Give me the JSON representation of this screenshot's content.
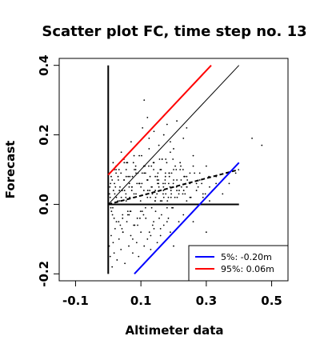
{
  "chart_data": {
    "type": "scatter",
    "title": "Scatter plot FC, time step no. 13",
    "xlabel": "Altimeter data",
    "ylabel": "Forecast",
    "xlim": [
      -0.15,
      0.55
    ],
    "ylim": [
      -0.22,
      0.42
    ],
    "x_ticks": [
      -0.1,
      0.1,
      0.3,
      0.5
    ],
    "x_tick_labels": [
      "-0.1",
      "0.1",
      "0.3",
      "0.5"
    ],
    "y_ticks": [
      -0.2,
      0.0,
      0.2,
      0.4
    ],
    "y_tick_labels": [
      "-0.2",
      "0.0",
      "0.2",
      "0.4"
    ],
    "grid": false,
    "legend_position": "bottom-right",
    "legend": [
      {
        "label": "5%: -0.20m",
        "color": "#0000ff"
      },
      {
        "label": "95%:  0.06m",
        "color": "#ff0000"
      }
    ],
    "reference_lines": [
      {
        "name": "horizontal-axis-line",
        "x": [
          0.0,
          0.4
        ],
        "y": [
          0.0,
          0.0
        ],
        "color": "#000000",
        "style": "solid",
        "width": 2
      },
      {
        "name": "vertical-axis-line",
        "x": [
          0.0,
          0.0
        ],
        "y": [
          -0.2,
          0.4
        ],
        "color": "#000000",
        "style": "solid",
        "width": 2
      },
      {
        "name": "identity-line",
        "x": [
          0.0,
          0.4
        ],
        "y": [
          0.0,
          0.4
        ],
        "color": "#000000",
        "style": "solid",
        "width": 1
      },
      {
        "name": "regression-line",
        "x": [
          0.0,
          0.4
        ],
        "y": [
          0.0,
          0.1
        ],
        "color": "#000000",
        "style": "dashed",
        "width": 2
      },
      {
        "name": "upper-bound-line",
        "x": [
          0.0,
          0.315
        ],
        "y": [
          0.085,
          0.4
        ],
        "color": "#ff0000",
        "style": "solid",
        "width": 2
      },
      {
        "name": "lower-bound-line",
        "x": [
          0.08,
          0.4
        ],
        "y": [
          -0.2,
          0.12
        ],
        "color": "#0000ff",
        "style": "solid",
        "width": 2
      }
    ],
    "points": {
      "x": [
        0.005,
        0.01,
        0.015,
        0.02,
        0.025,
        0.03,
        0.035,
        0.04,
        0.045,
        0.05,
        0.055,
        0.06,
        0.065,
        0.07,
        0.075,
        0.08,
        0.085,
        0.09,
        0.095,
        0.1,
        0.105,
        0.11,
        0.115,
        0.12,
        0.125,
        0.13,
        0.135,
        0.14,
        0.145,
        0.15,
        0.155,
        0.16,
        0.165,
        0.17,
        0.175,
        0.18,
        0.185,
        0.19,
        0.195,
        0.2,
        0.21,
        0.22,
        0.23,
        0.24,
        0.25,
        0.26,
        0.27,
        0.28,
        0.29,
        0.3,
        0.006,
        0.012,
        0.018,
        0.024,
        0.03,
        0.036,
        0.042,
        0.048,
        0.054,
        0.06,
        0.066,
        0.072,
        0.078,
        0.084,
        0.09,
        0.096,
        0.102,
        0.108,
        0.114,
        0.12,
        0.126,
        0.132,
        0.138,
        0.144,
        0.15,
        0.156,
        0.162,
        0.168,
        0.174,
        0.18,
        0.186,
        0.192,
        0.198,
        0.204,
        0.21,
        0.216,
        0.222,
        0.228,
        0.234,
        0.24,
        0.008,
        0.016,
        0.024,
        0.032,
        0.04,
        0.048,
        0.056,
        0.064,
        0.072,
        0.08,
        0.088,
        0.096,
        0.104,
        0.112,
        0.12,
        0.128,
        0.136,
        0.144,
        0.152,
        0.16,
        0.168,
        0.176,
        0.184,
        0.192,
        0.2,
        0.208,
        0.216,
        0.224,
        0.232,
        0.24,
        0.25,
        0.26,
        0.27,
        0.28,
        0.29,
        0.31,
        0.33,
        0.35,
        0.37,
        0.39,
        0.004,
        0.009,
        0.014,
        0.019,
        0.024,
        0.029,
        0.034,
        0.039,
        0.044,
        0.049,
        0.054,
        0.059,
        0.064,
        0.069,
        0.074,
        0.079,
        0.084,
        0.089,
        0.094,
        0.099,
        0.104,
        0.109,
        0.114,
        0.119,
        0.124,
        0.129,
        0.134,
        0.139,
        0.144,
        0.149,
        0.154,
        0.159,
        0.164,
        0.169,
        0.174,
        0.179,
        0.184,
        0.189,
        0.194,
        0.199,
        0.007,
        0.013,
        0.019,
        0.025,
        0.031,
        0.037,
        0.043,
        0.049,
        0.055,
        0.061,
        0.067,
        0.073,
        0.079,
        0.085,
        0.091,
        0.097,
        0.103,
        0.109,
        0.115,
        0.121,
        0.127,
        0.133,
        0.139,
        0.145,
        0.151,
        0.157,
        0.163,
        0.169,
        0.175,
        0.181,
        0.187,
        0.193,
        0.199,
        0.205,
        0.211,
        0.217,
        0.223,
        0.229,
        0.235,
        0.241,
        0.011,
        0.022,
        0.033,
        0.044,
        0.055,
        0.066,
        0.077,
        0.088,
        0.099,
        0.11,
        0.121,
        0.132,
        0.143,
        0.154,
        0.165,
        0.176,
        0.187,
        0.198,
        0.209,
        0.22,
        0.231,
        0.242,
        0.253,
        0.264,
        0.275,
        0.286,
        0.297,
        0.308,
        0.319,
        0.33,
        0.003,
        0.006,
        0.009,
        0.012,
        0.015,
        0.018,
        0.021,
        0.027,
        0.033,
        0.039,
        0.045,
        0.051,
        0.057,
        0.063,
        0.069,
        0.075,
        0.081,
        0.087,
        0.093,
        0.1,
        0.11,
        0.12,
        0.13,
        0.14,
        0.15,
        0.16,
        0.17,
        0.18,
        0.19,
        0.2,
        0.105,
        0.11,
        0.12,
        0.125,
        0.14,
        0.155,
        0.17,
        0.18,
        0.19,
        0.2,
        0.21,
        0.23,
        0.24,
        0.25,
        0.26,
        0.27,
        0.31,
        0.44,
        0.47,
        0.3
      ],
      "y": [
        0.05,
        -0.02,
        0.12,
        0.03,
        -0.05,
        0.08,
        0.01,
        0.15,
        -0.08,
        0.04,
        0.1,
        -0.03,
        0.06,
        0.18,
        -0.1,
        0.02,
        0.09,
        -0.06,
        0.14,
        0.05,
        0.0,
        0.11,
        -0.04,
        0.07,
        0.16,
        -0.09,
        0.03,
        0.12,
        -0.02,
        0.08,
        0.05,
        -0.07,
        0.13,
        0.02,
        0.09,
        -0.05,
        0.06,
        0.15,
        -0.01,
        0.1,
        0.04,
        0.12,
        -0.03,
        0.08,
        0.02,
        0.14,
        0.06,
        0.09,
        0.03,
        0.11,
        0.02,
        0.07,
        -0.04,
        0.1,
        0.01,
        0.05,
        -0.07,
        0.13,
        0.03,
        -0.02,
        0.08,
        0.04,
        -0.06,
        0.11,
        0.0,
        0.06,
        0.14,
        -0.03,
        0.09,
        0.02,
        -0.08,
        0.05,
        0.12,
        0.01,
        0.07,
        -0.04,
        0.1,
        0.03,
        0.06,
        -0.01,
        0.09,
        0.04,
        0.13,
        0.02,
        0.07,
        -0.05,
        0.11,
        0.03,
        0.08,
        0.05,
        -0.01,
        0.04,
        0.09,
        -0.05,
        0.02,
        0.07,
        0.12,
        -0.03,
        0.05,
        0.1,
        0.0,
        0.06,
        -0.02,
        0.11,
        0.03,
        0.08,
        -0.06,
        0.04,
        0.09,
        0.01,
        0.06,
        0.13,
        -0.04,
        0.02,
        0.07,
        0.1,
        0.03,
        0.05,
        0.08,
        0.01,
        0.06,
        0.11,
        0.04,
        0.07,
        0.02,
        0.05,
        0.08,
        0.03,
        0.06,
        0.09,
        0.03,
        0.08,
        -0.01,
        0.06,
        0.11,
        0.0,
        0.04,
        0.09,
        -0.03,
        0.07,
        0.02,
        0.12,
        0.05,
        -0.02,
        0.08,
        0.03,
        0.1,
        -0.04,
        0.06,
        0.01,
        0.09,
        0.04,
        -0.01,
        0.07,
        0.11,
        0.02,
        0.05,
        -0.05,
        0.08,
        0.03,
        0.06,
        0.1,
        0.01,
        0.04,
        0.07,
        0.12,
        0.02,
        0.05,
        0.09,
        0.0,
        0.06,
        -0.03,
        0.1,
        0.02,
        0.07,
        -0.06,
        0.04,
        0.12,
        0.01,
        0.08,
        -0.02,
        0.05,
        0.14,
        0.03,
        0.09,
        -0.04,
        0.06,
        0.11,
        0.0,
        0.07,
        0.04,
        -0.01,
        0.1,
        0.02,
        0.06,
        0.13,
        -0.03,
        0.05,
        0.08,
        0.01,
        0.09,
        0.03,
        0.06,
        0.11,
        0.02,
        0.04,
        0.07,
        0.1,
        0.03,
        0.05,
        0.0,
        0.05,
        0.1,
        -0.04,
        0.08,
        0.02,
        0.12,
        0.06,
        -0.02,
        0.09,
        0.04,
        0.11,
        0.01,
        0.07,
        0.13,
        0.03,
        0.08,
        -0.01,
        0.05,
        0.1,
        0.04,
        0.07,
        0.02,
        0.09,
        0.05,
        0.06,
        0.03,
        0.08,
        0.04,
        0.06,
        -0.12,
        -0.15,
        -0.09,
        -0.18,
        -0.11,
        -0.14,
        -0.07,
        -0.16,
        -0.1,
        -0.13,
        -0.08,
        -0.17,
        -0.05,
        -0.12,
        -0.09,
        -0.14,
        -0.06,
        -0.11,
        -0.15,
        -0.08,
        -0.12,
        -0.1,
        -0.13,
        -0.07,
        -0.11,
        -0.09,
        -0.06,
        -0.1,
        -0.08,
        -0.12,
        0.22,
        0.3,
        0.25,
        0.19,
        0.21,
        0.17,
        0.2,
        0.23,
        0.18,
        0.16,
        0.24,
        0.19,
        0.22,
        0.09,
        -0.05,
        -0.12,
        0.01,
        0.19,
        0.17,
        -0.08
      ]
    },
    "series_color": "#000000"
  }
}
